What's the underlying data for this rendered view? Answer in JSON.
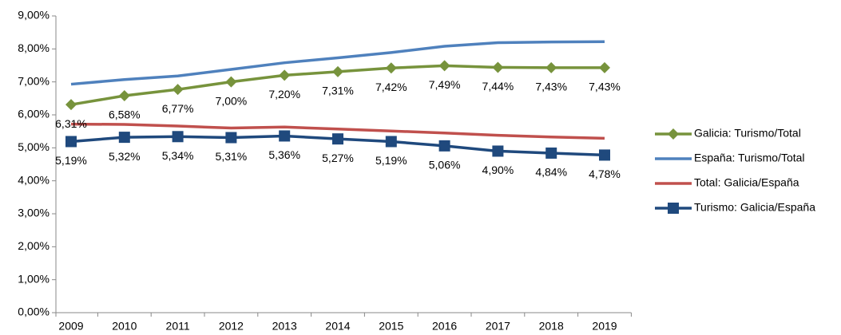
{
  "chart_data": {
    "type": "line",
    "categories": [
      "2009",
      "2010",
      "2011",
      "2012",
      "2013",
      "2014",
      "2015",
      "2016",
      "2017",
      "2018",
      "2019"
    ],
    "series": [
      {
        "name": "Galicia: Turismo/Total",
        "color": "#77933c",
        "marker": "diamond",
        "values": [
          6.31,
          6.58,
          6.77,
          7.0,
          7.2,
          7.31,
          7.42,
          7.49,
          7.44,
          7.43,
          7.43
        ],
        "value_labels": [
          "6,31%",
          "6,58%",
          "6,77%",
          "7,00%",
          "7,20%",
          "7,31%",
          "7,42%",
          "7,49%",
          "7,44%",
          "7,43%",
          "7,43%"
        ]
      },
      {
        "name": "España: Turismo/Total",
        "color": "#4f81bd",
        "values": [
          6.93,
          7.07,
          7.18,
          7.38,
          7.58,
          7.73,
          7.89,
          8.08,
          8.19,
          8.21,
          8.22
        ]
      },
      {
        "name": "Total: Galicia/España",
        "color": "#c0504d",
        "values": [
          5.72,
          5.71,
          5.66,
          5.6,
          5.63,
          5.57,
          5.51,
          5.45,
          5.38,
          5.33,
          5.29
        ]
      },
      {
        "name": "Turismo: Galicia/España",
        "color": "#1f497d",
        "marker": "square",
        "values": [
          5.19,
          5.32,
          5.34,
          5.31,
          5.36,
          5.27,
          5.19,
          5.06,
          4.9,
          4.84,
          4.78
        ],
        "value_labels": [
          "5,19%",
          "5,32%",
          "5,34%",
          "5,31%",
          "5,36%",
          "5,27%",
          "5,19%",
          "5,06%",
          "4,90%",
          "4,84%",
          "4,78%"
        ]
      }
    ],
    "ylim": [
      0,
      9
    ],
    "yticks": [
      {
        "value": 0,
        "label": "0,00%"
      },
      {
        "value": 1,
        "label": "1,00%"
      },
      {
        "value": 2,
        "label": "2,00%"
      },
      {
        "value": 3,
        "label": "3,00%"
      },
      {
        "value": 4,
        "label": "4,00%"
      },
      {
        "value": 5,
        "label": "5,00%"
      },
      {
        "value": 6,
        "label": "6,00%"
      },
      {
        "value": 7,
        "label": "7,00%"
      },
      {
        "value": 8,
        "label": "8,00%"
      },
      {
        "value": 9,
        "label": "9,00%"
      }
    ],
    "legend": "right"
  }
}
